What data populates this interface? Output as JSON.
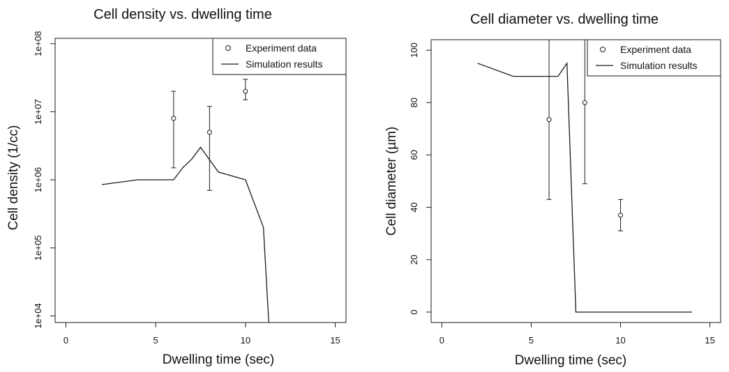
{
  "colors": {
    "ink": "#1a1a1a",
    "background": "#ffffff"
  },
  "chart_data": [
    {
      "type": "scatter",
      "title": "Cell density vs. dwelling time",
      "xlabel": "Dwelling time (sec)",
      "ylabel": "Cell density (1/cc)",
      "yscale": "log",
      "xlim": [
        -0.6,
        15.6
      ],
      "ylim": [
        8000,
        120000000
      ],
      "xticks": [
        0,
        5,
        10,
        15
      ],
      "xtick_labels": [
        "0",
        "5",
        "10",
        "15"
      ],
      "yticks": [
        10000,
        100000,
        1000000,
        10000000,
        100000000
      ],
      "ytick_labels": [
        "1e+04",
        "1e+05",
        "1e+06",
        "1e+07",
        "1e+08"
      ],
      "legend": {
        "position": "top-right",
        "entries": [
          "Experiment data",
          "Simulation results"
        ]
      },
      "series": [
        {
          "name": "Experiment data",
          "kind": "points-with-errorbars",
          "x": [
            6,
            8,
            10
          ],
          "y": [
            8000000,
            5000000,
            20000000
          ],
          "y_low": [
            1500000,
            700000,
            15000000
          ],
          "y_high": [
            20000000,
            12000000,
            30000000
          ]
        },
        {
          "name": "Simulation results",
          "kind": "line",
          "x": [
            2,
            4,
            6,
            6.5,
            7,
            7.5,
            8.5,
            10,
            11,
            11.3
          ],
          "y": [
            850000,
            1000000,
            1000000,
            1500000,
            2000000,
            3000000,
            1300000,
            1000000,
            200000,
            8000
          ]
        }
      ]
    },
    {
      "type": "scatter",
      "title": "Cell diameter vs. dwelling time",
      "xlabel": "Dwelling time (sec)",
      "ylabel": "Cell diameter (µm)",
      "yscale": "linear",
      "xlim": [
        -0.6,
        15.6
      ],
      "ylim": [
        -4,
        104
      ],
      "xticks": [
        0,
        5,
        10,
        15
      ],
      "xtick_labels": [
        "0",
        "5",
        "10",
        "15"
      ],
      "yticks": [
        0,
        20,
        40,
        60,
        80,
        100
      ],
      "ytick_labels": [
        "0",
        "20",
        "40",
        "60",
        "80",
        "100"
      ],
      "legend": {
        "position": "top-right",
        "entries": [
          "Experiment data",
          "Simulation results"
        ]
      },
      "series": [
        {
          "name": "Experiment data",
          "kind": "points-with-errorbars",
          "x": [
            6,
            8,
            10
          ],
          "y": [
            73.5,
            80,
            37
          ],
          "y_low": [
            43,
            49,
            31
          ],
          "y_high": [
            104,
            104,
            43
          ]
        },
        {
          "name": "Simulation results",
          "kind": "line",
          "x": [
            2,
            4,
            6.5,
            7,
            7.5,
            14
          ],
          "y": [
            95,
            90,
            90,
            95,
            0,
            0
          ]
        }
      ]
    }
  ]
}
